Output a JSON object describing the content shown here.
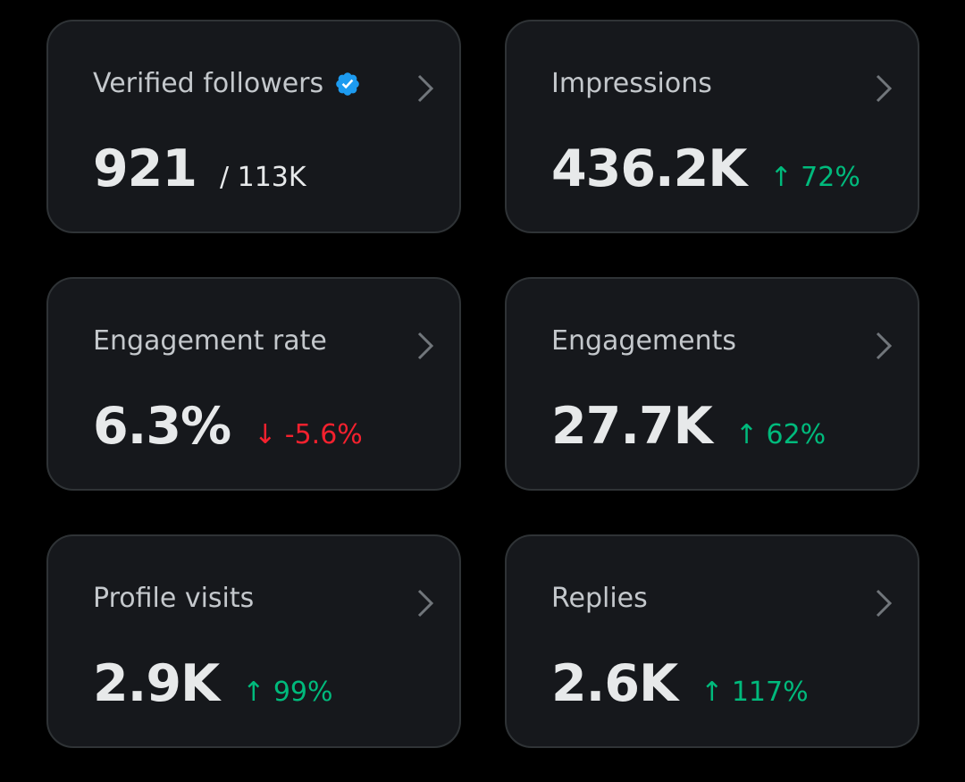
{
  "cards": [
    {
      "title": "Verified followers",
      "verified": true,
      "value": "921",
      "secondary": "/ 113K"
    },
    {
      "title": "Impressions",
      "value": "436.2K",
      "change": "↑ 72%",
      "change_color": "#00ba7c"
    },
    {
      "title": "Engagement rate",
      "value": "6.3%",
      "change": "↓ -5.6%",
      "change_color": "#f4212e"
    },
    {
      "title": "Engagements",
      "value": "27.7K",
      "change": "↑ 62%",
      "change_color": "#00ba7c"
    },
    {
      "title": "Profile visits",
      "value": "2.9K",
      "change": "↑ 99%",
      "change_color": "#00ba7c"
    },
    {
      "title": "Replies",
      "value": "2.6K",
      "change": "↑ 117%",
      "change_color": "#00ba7c"
    }
  ]
}
